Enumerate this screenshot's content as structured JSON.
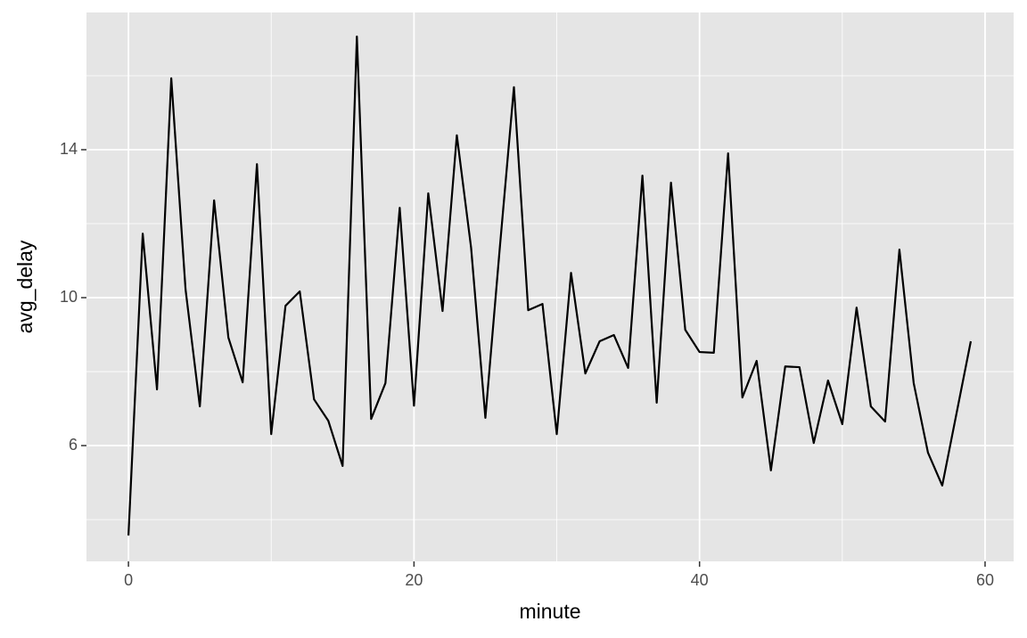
{
  "chart_data": {
    "type": "line",
    "x_label": "minute",
    "y_label": "avg_delay",
    "x": [
      0,
      1,
      2,
      3,
      4,
      5,
      6,
      7,
      8,
      9,
      10,
      11,
      12,
      13,
      14,
      15,
      16,
      17,
      18,
      19,
      20,
      21,
      22,
      23,
      24,
      25,
      26,
      27,
      28,
      29,
      30,
      31,
      32,
      33,
      34,
      35,
      36,
      37,
      38,
      39,
      40,
      41,
      42,
      43,
      44,
      45,
      46,
      47,
      48,
      49,
      50,
      51,
      52,
      53,
      54,
      55,
      56,
      57,
      58,
      59
    ],
    "series": [
      {
        "name": "avg_delay",
        "color": "#000000",
        "values": [
          3.57,
          11.73,
          7.52,
          15.93,
          10.22,
          7.06,
          12.63,
          8.92,
          7.71,
          13.61,
          6.31,
          9.78,
          10.17,
          7.25,
          6.67,
          5.45,
          17.06,
          6.72,
          7.69,
          12.43,
          7.08,
          12.82,
          9.64,
          14.39,
          11.35,
          6.75,
          11.3,
          15.69,
          9.66,
          9.83,
          6.31,
          10.67,
          7.95,
          8.82,
          8.99,
          8.1,
          13.3,
          7.16,
          13.11,
          9.13,
          8.53,
          8.51,
          13.9,
          7.3,
          8.29,
          5.33,
          8.14,
          8.12,
          6.07,
          7.76,
          6.58,
          9.73,
          7.06,
          6.65,
          11.3,
          7.69,
          5.81,
          4.92,
          6.87,
          8.82
        ]
      }
    ],
    "xlim": [
      -2.94,
      62
    ],
    "xticks": [
      0,
      20,
      40,
      60
    ],
    "x_minor_ticks": [
      10,
      30,
      50
    ],
    "ylim": [
      2.87,
      17.71
    ],
    "yticks": [
      6,
      10,
      14
    ],
    "y_minor_ticks": [
      4,
      8,
      12,
      16
    ],
    "grid": true
  }
}
